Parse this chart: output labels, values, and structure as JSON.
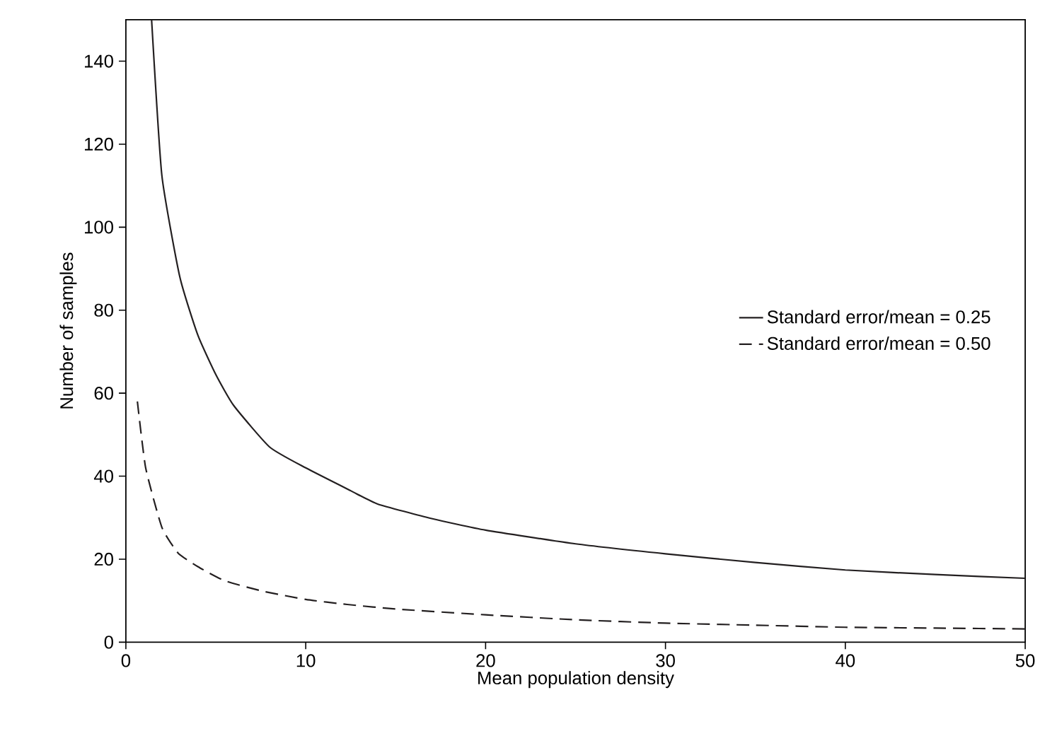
{
  "chart_data": {
    "type": "line",
    "xlabel": "Mean population density",
    "ylabel": "Number of samples",
    "xlim": [
      0,
      50
    ],
    "ylim": [
      0,
      150
    ],
    "xticks": [
      0,
      10,
      20,
      30,
      40,
      50
    ],
    "yticks": [
      0,
      20,
      40,
      60,
      80,
      100,
      120,
      140
    ],
    "grid": false,
    "legend": "right",
    "marker": "none",
    "series": [
      {
        "name": "Standard error/mean = 0.25",
        "color": "#231f20",
        "line_style": "solid",
        "x": [
          1.43,
          2,
          3,
          4,
          5,
          6,
          8,
          10,
          12.5,
          14,
          17,
          20,
          25,
          30,
          35,
          40,
          45,
          50
        ],
        "values": [
          150,
          112.5,
          88,
          74,
          64.5,
          57,
          47,
          42,
          36.5,
          33.3,
          29.8,
          27,
          23.7,
          21.3,
          19.2,
          17.4,
          16.3,
          15.4
        ]
      },
      {
        "name": "Standard error/mean = 0.50",
        "color": "#231f20",
        "line_style": "dashed",
        "x": [
          0.64,
          1.1,
          2,
          2.9,
          4,
          5.5,
          7.6,
          10,
          12.3,
          15,
          20,
          25,
          30,
          35,
          40,
          45,
          50
        ],
        "values": [
          58,
          42,
          27.7,
          21.5,
          18.2,
          14.8,
          12.3,
          10.3,
          9.1,
          8,
          6.6,
          5.4,
          4.6,
          4.1,
          3.6,
          3.4,
          3.2
        ]
      }
    ]
  }
}
